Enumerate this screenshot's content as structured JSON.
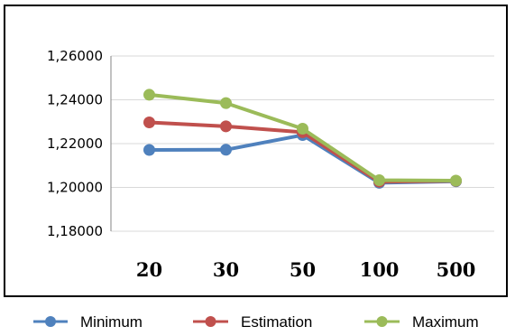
{
  "chart_data": {
    "type": "line",
    "title": "",
    "xlabel": "",
    "ylabel": "",
    "categories": [
      "20",
      "30",
      "50",
      "100",
      "500"
    ],
    "ylim": [
      1.18,
      1.26
    ],
    "yticks": [
      1.18,
      1.2,
      1.22,
      1.24,
      1.26
    ],
    "ytick_labels": [
      "1,18000",
      "1,20000",
      "1,22000",
      "1,24000",
      "1,26000"
    ],
    "grid": "horizontal",
    "legend_position": "bottom",
    "series": [
      {
        "name": "Minimum",
        "color": "#4f81bd",
        "values": [
          1.2171,
          1.2172,
          1.2239,
          1.2021,
          1.2028
        ]
      },
      {
        "name": "Estimation",
        "color": "#c0504d",
        "values": [
          1.2297,
          1.2279,
          1.2252,
          1.2026,
          1.203
        ]
      },
      {
        "name": "Maximum",
        "color": "#9bbb59",
        "values": [
          1.2423,
          1.2385,
          1.2268,
          1.2033,
          1.2031
        ]
      }
    ]
  }
}
